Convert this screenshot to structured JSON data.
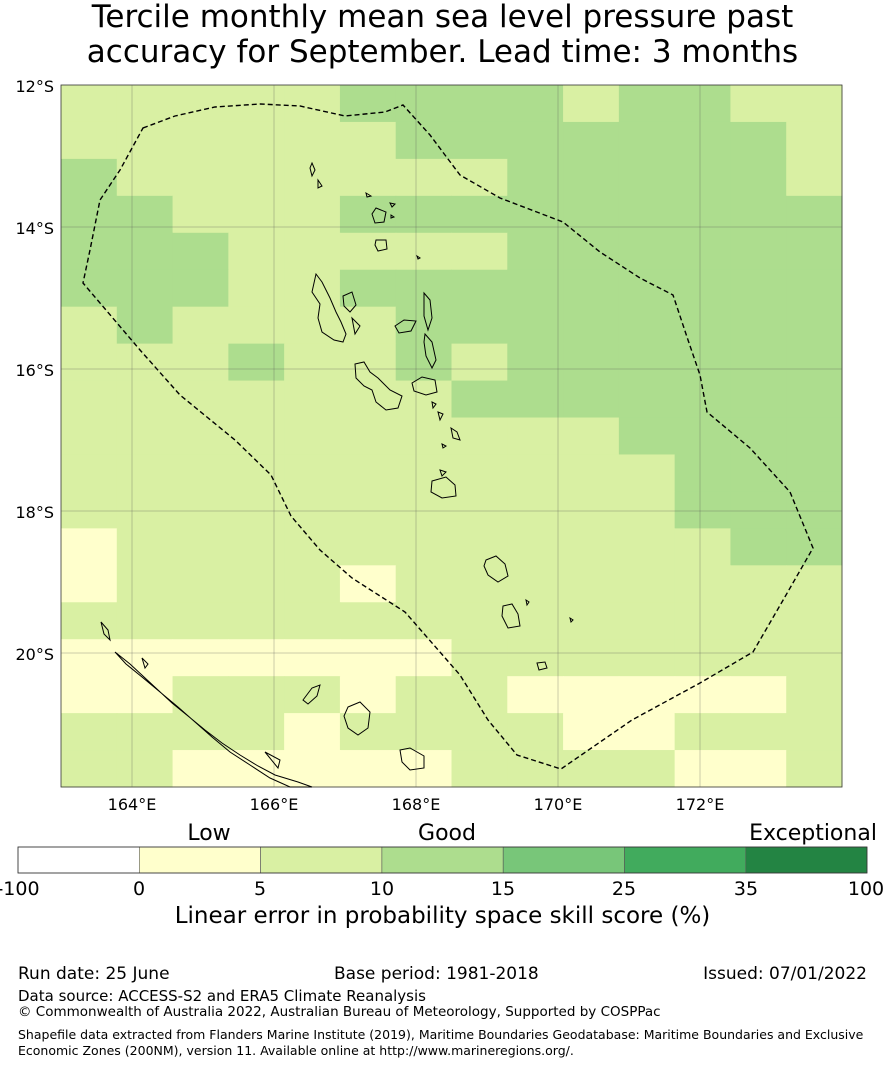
{
  "title": {
    "line1": "Tercile monthly mean sea level pressure past",
    "line2": "accuracy for September. Lead time: 3 months"
  },
  "map": {
    "lat_labels": [
      "12°S",
      "14°S",
      "16°S",
      "18°S",
      "20°S"
    ],
    "lon_labels": [
      "164°E",
      "166°E",
      "168°E",
      "170°E",
      "172°E"
    ],
    "extent": {
      "lon": [
        163,
        174
      ],
      "lat": [
        -21.9,
        -12
      ]
    },
    "colors": {
      "low": "#ffffcc",
      "good_5_10": "#d9f0a3",
      "good_10_15": "#addd8e"
    }
  },
  "colorbar": {
    "category_labels": [
      "Low",
      "Good",
      "Exceptional"
    ],
    "tick_labels": [
      "-100",
      "0",
      "5",
      "10",
      "15",
      "25",
      "35",
      "100"
    ],
    "colors": [
      "#ffffff",
      "#ffffcc",
      "#d9f0a3",
      "#addd8e",
      "#78c679",
      "#41ab5d",
      "#238443"
    ],
    "title": "Linear error in probability space skill score (%)"
  },
  "footer": {
    "run_date": "Run date: 25 June",
    "base_period": "Base period: 1981-2018",
    "issued": "Issued: 07/01/2022",
    "data_source": "Data source: ACCESS-S2 and ERA5 Climate Reanalysis",
    "copyright": "© Commonwealth of Australia 2022, Australian Bureau of Meteorology, Supported by COSPPac",
    "shapefile_line1": "Shapefile data extracted from Flanders Marine Institute (2019), Maritime Boundaries Geodatabase: Maritime Boundaries and Exclusive",
    "shapefile_line2": "Economic Zones (200NM), version 11. Available online at http://www.marineregions.org/."
  }
}
